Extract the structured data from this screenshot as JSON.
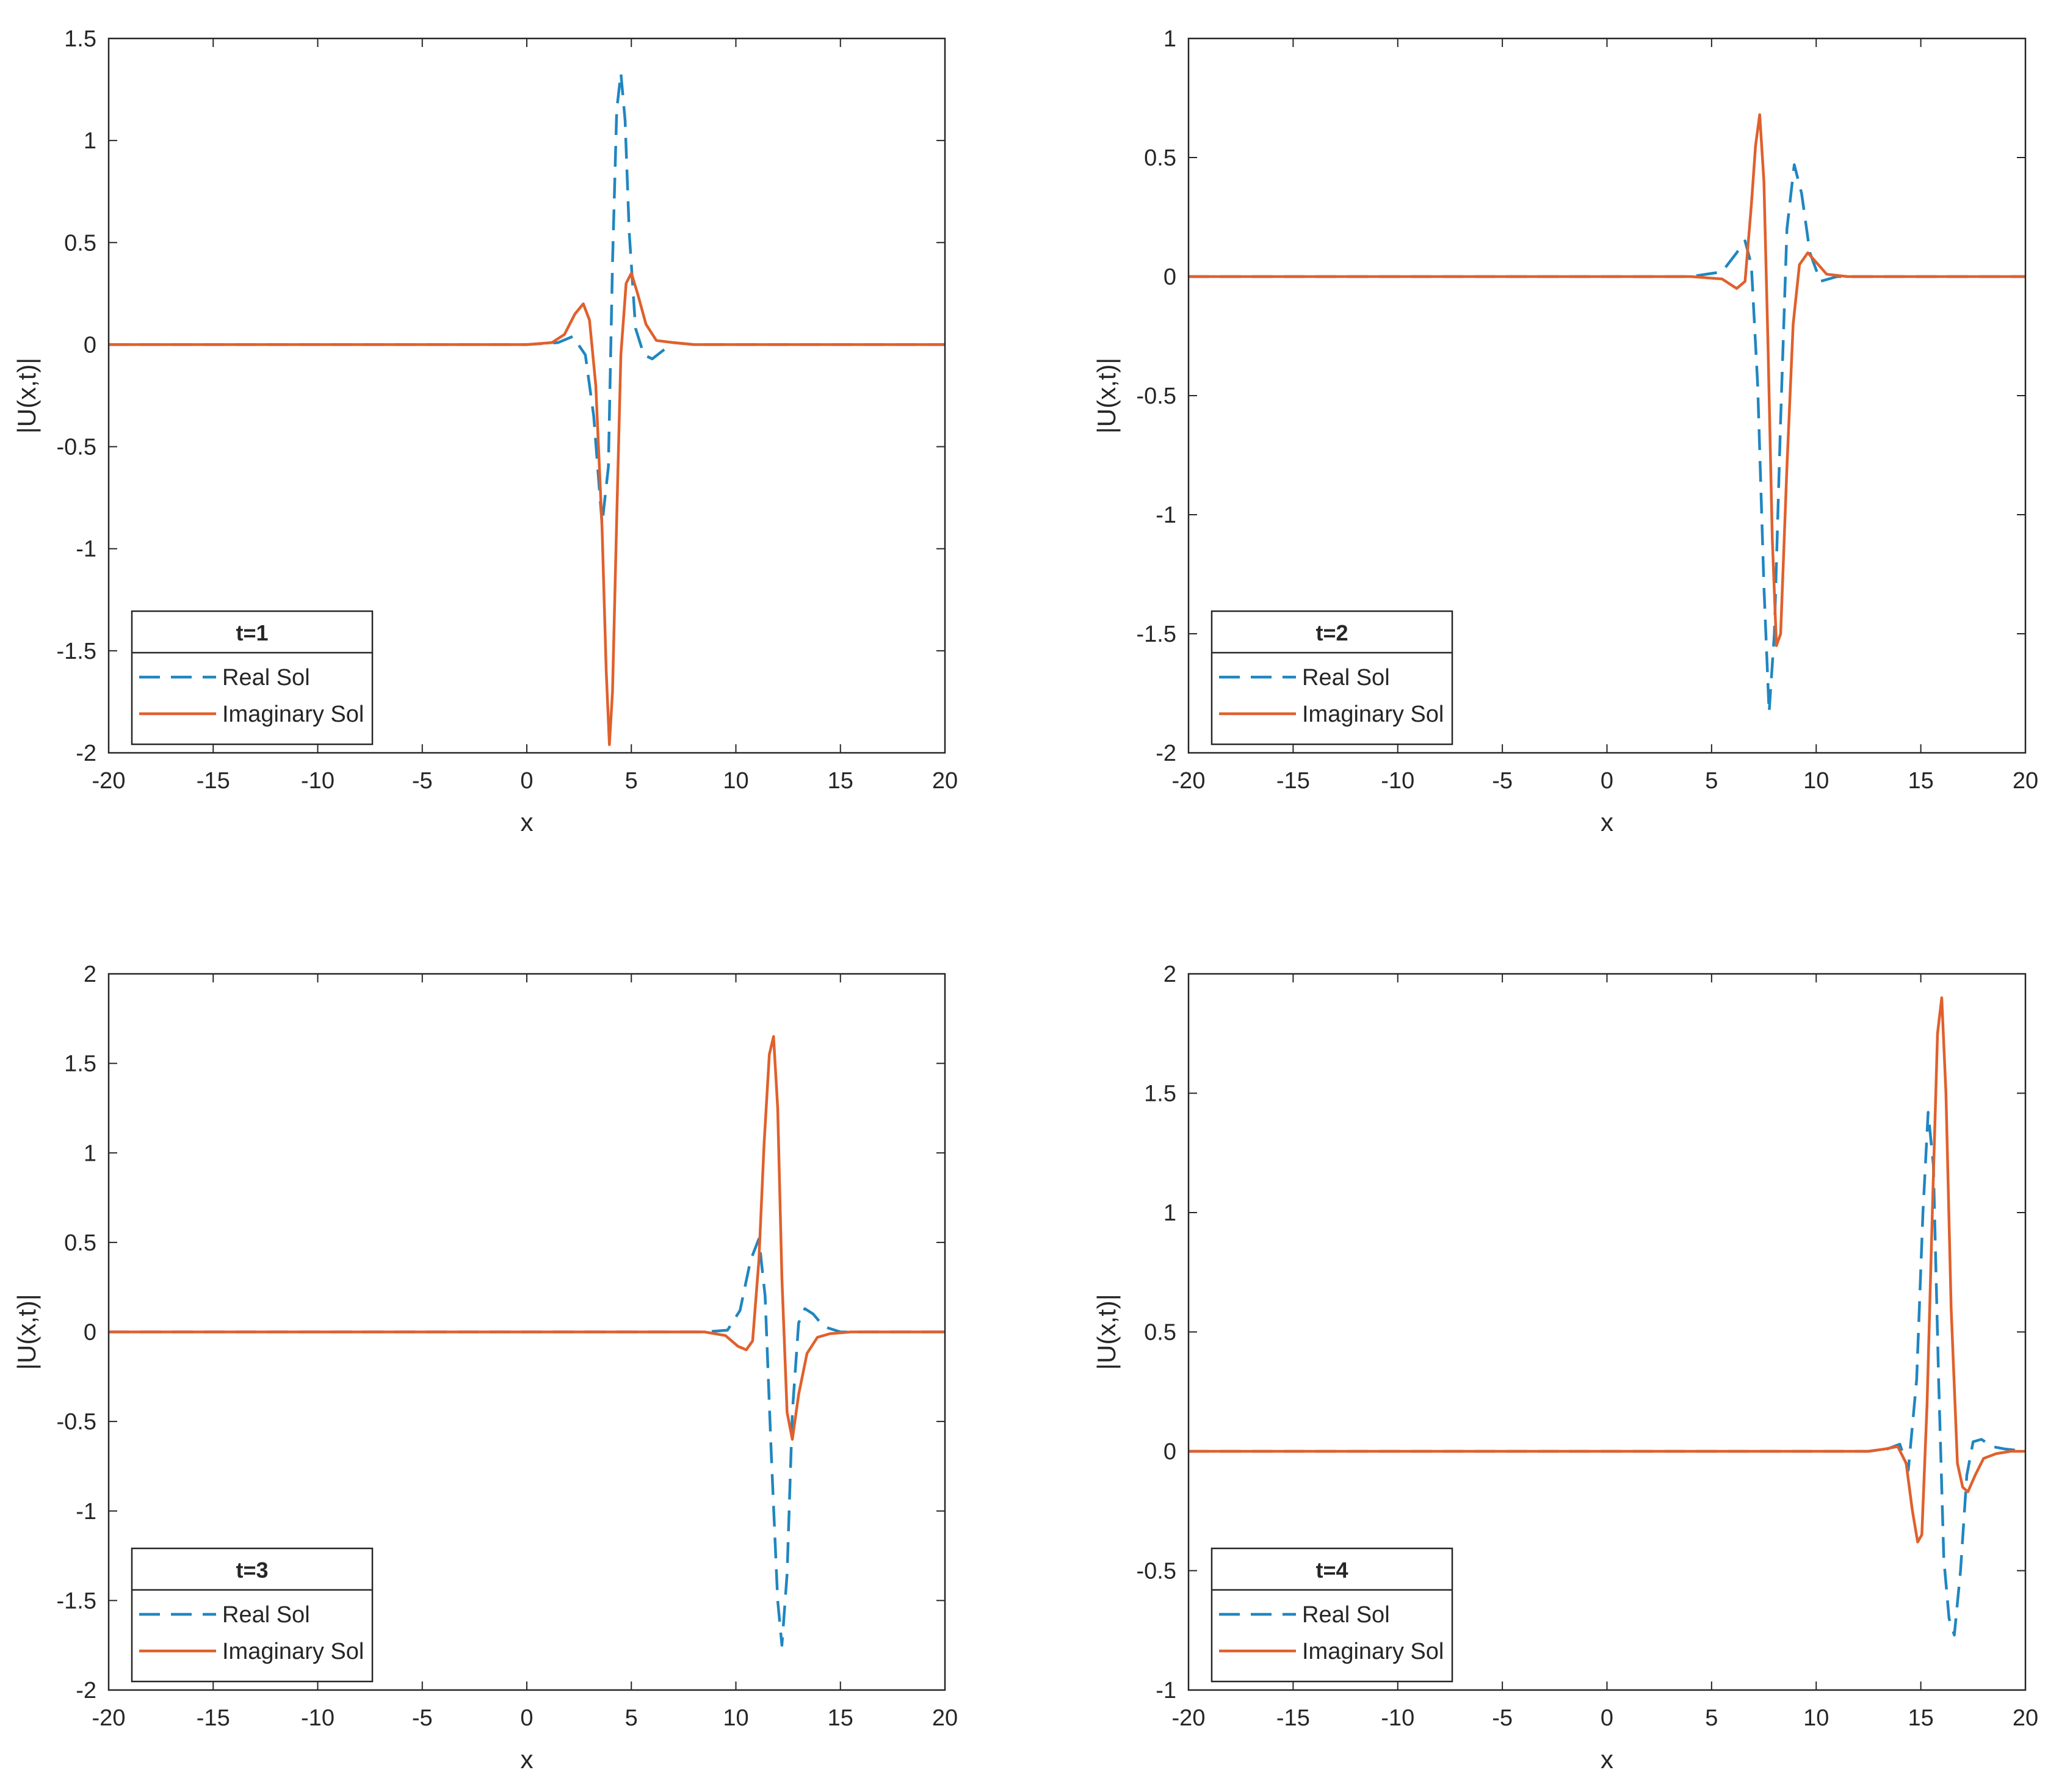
{
  "figure": {
    "colors": {
      "real": "#1f86c1",
      "imaginary": "#e0602c",
      "axis": "#262626",
      "background": "#ffffff"
    }
  },
  "chart_data": [
    {
      "type": "line",
      "legend_title": "t=1",
      "xlabel": "x",
      "ylabel": "|U(x,t)|",
      "xlim": [
        -20,
        20
      ],
      "ylim": [
        -2,
        1.5
      ],
      "xticks": [
        -20,
        -15,
        -10,
        -5,
        0,
        5,
        10,
        15,
        20
      ],
      "xtick_labels": [
        "-20",
        "-15",
        "-10",
        "-5",
        "0",
        "5",
        "10",
        "15",
        "20"
      ],
      "yticks": [
        -2,
        -1.5,
        -1,
        -0.5,
        0,
        0.5,
        1,
        1.5
      ],
      "ytick_labels": [
        "-2",
        "-1.5",
        "-1",
        "-0.5",
        "0",
        "0.5",
        "1",
        "1.5"
      ],
      "legend_location": "bottom-left",
      "series": [
        {
          "name": "Real Sol",
          "style": "dashed",
          "color": "#1f86c1",
          "x": [
            -20,
            0,
            1.5,
            2.2,
            2.8,
            3.2,
            3.6,
            3.9,
            4.1,
            4.3,
            4.5,
            4.7,
            4.9,
            5.2,
            5.6,
            6.0,
            6.5,
            7.0,
            8.0,
            20
          ],
          "y": [
            0,
            0,
            0.01,
            0.04,
            -0.05,
            -0.35,
            -0.88,
            -0.6,
            0.4,
            1.15,
            1.33,
            1.1,
            0.55,
            0.08,
            -0.05,
            -0.07,
            -0.03,
            0.01,
            0,
            0
          ]
        },
        {
          "name": "Imaginary Sol",
          "style": "solid",
          "color": "#e0602c",
          "x": [
            -20,
            0,
            1.2,
            1.8,
            2.3,
            2.7,
            3.0,
            3.3,
            3.6,
            3.8,
            3.95,
            4.1,
            4.3,
            4.5,
            4.75,
            5.0,
            5.3,
            5.7,
            6.2,
            7.0,
            8.0,
            20
          ],
          "y": [
            0,
            0,
            0.01,
            0.05,
            0.15,
            0.2,
            0.12,
            -0.2,
            -0.9,
            -1.6,
            -1.96,
            -1.7,
            -0.85,
            -0.05,
            0.3,
            0.35,
            0.25,
            0.1,
            0.02,
            0.01,
            0,
            0
          ]
        }
      ]
    },
    {
      "type": "line",
      "legend_title": "t=2",
      "xlabel": "x",
      "ylabel": "|U(x,t)|",
      "xlim": [
        -20,
        20
      ],
      "ylim": [
        -2,
        1
      ],
      "xticks": [
        -20,
        -15,
        -10,
        -5,
        0,
        5,
        10,
        15,
        20
      ],
      "xtick_labels": [
        "-20",
        "-15",
        "-10",
        "-5",
        "0",
        "5",
        "10",
        "15",
        "20"
      ],
      "yticks": [
        -2,
        -1.5,
        -1,
        -0.5,
        0,
        0.5,
        1
      ],
      "ytick_labels": [
        "-2",
        "-1.5",
        "-1",
        "-0.5",
        "0",
        "0.5",
        "1"
      ],
      "legend_location": "bottom-left",
      "series": [
        {
          "name": "Real Sol",
          "style": "dashed",
          "color": "#1f86c1",
          "x": [
            -20,
            4,
            5.5,
            6.2,
            6.6,
            6.9,
            7.2,
            7.5,
            7.75,
            8.0,
            8.3,
            8.6,
            8.95,
            9.3,
            9.7,
            10.2,
            11.0,
            12.0,
            20
          ],
          "y": [
            0,
            0,
            0.02,
            0.1,
            0.15,
            0.05,
            -0.45,
            -1.3,
            -1.83,
            -1.5,
            -0.6,
            0.2,
            0.47,
            0.35,
            0.1,
            -0.02,
            0,
            0,
            0
          ]
        },
        {
          "name": "Imaginary Sol",
          "style": "solid",
          "color": "#e0602c",
          "x": [
            -20,
            4,
            5.5,
            6.2,
            6.6,
            6.9,
            7.1,
            7.3,
            7.5,
            7.7,
            7.9,
            8.1,
            8.3,
            8.6,
            8.9,
            9.2,
            9.6,
            10.0,
            10.5,
            11.5,
            20
          ],
          "y": [
            0,
            0,
            -0.01,
            -0.05,
            -0.02,
            0.3,
            0.55,
            0.68,
            0.4,
            -0.3,
            -1.1,
            -1.55,
            -1.5,
            -0.8,
            -0.2,
            0.05,
            0.1,
            0.06,
            0.01,
            0,
            0
          ]
        }
      ]
    },
    {
      "type": "line",
      "legend_title": "t=3",
      "xlabel": "x",
      "ylabel": "|U(x,t)|",
      "xlim": [
        -20,
        20
      ],
      "ylim": [
        -2,
        2
      ],
      "xticks": [
        -20,
        -15,
        -10,
        -5,
        0,
        5,
        10,
        15,
        20
      ],
      "xtick_labels": [
        "-20",
        "-15",
        "-10",
        "-5",
        "0",
        "5",
        "10",
        "15",
        "20"
      ],
      "yticks": [
        -2,
        -1.5,
        -1,
        -0.5,
        0,
        0.5,
        1,
        1.5,
        2
      ],
      "ytick_labels": [
        "-2",
        "-1.5",
        "-1",
        "-0.5",
        "0",
        "0.5",
        "1",
        "1.5",
        "2"
      ],
      "legend_location": "bottom-left",
      "series": [
        {
          "name": "Real Sol",
          "style": "dashed",
          "color": "#1f86c1",
          "x": [
            -20,
            8.5,
            9.6,
            10.2,
            10.7,
            11.1,
            11.4,
            11.7,
            12.0,
            12.2,
            12.45,
            12.7,
            13.0,
            13.3,
            13.7,
            14.2,
            15.0,
            16.0,
            20
          ],
          "y": [
            0,
            0,
            0.01,
            0.12,
            0.4,
            0.52,
            0.2,
            -0.7,
            -1.5,
            -1.75,
            -1.35,
            -0.45,
            0.05,
            0.13,
            0.1,
            0.03,
            0,
            0,
            0
          ]
        },
        {
          "name": "Imaginary Sol",
          "style": "solid",
          "color": "#e0602c",
          "x": [
            -20,
            8.5,
            9.5,
            10.1,
            10.5,
            10.8,
            11.1,
            11.35,
            11.6,
            11.8,
            12.0,
            12.2,
            12.45,
            12.7,
            13.0,
            13.4,
            13.9,
            14.5,
            15.5,
            20
          ],
          "y": [
            0,
            0,
            -0.02,
            -0.08,
            -0.1,
            -0.05,
            0.4,
            1.05,
            1.55,
            1.65,
            1.25,
            0.3,
            -0.45,
            -0.6,
            -0.35,
            -0.12,
            -0.03,
            -0.01,
            0,
            0
          ]
        }
      ]
    },
    {
      "type": "line",
      "legend_title": "t=4",
      "xlabel": "x",
      "ylabel": "|U(x,t)|",
      "xlim": [
        -20,
        20
      ],
      "ylim": [
        -1,
        2
      ],
      "xticks": [
        -20,
        -15,
        -10,
        -5,
        0,
        5,
        10,
        15,
        20
      ],
      "xtick_labels": [
        "-20",
        "-15",
        "-10",
        "-5",
        "0",
        "5",
        "10",
        "15",
        "20"
      ],
      "yticks": [
        -1,
        -0.5,
        0,
        0.5,
        1,
        1.5,
        2
      ],
      "ytick_labels": [
        "-1",
        "-0.5",
        "0",
        "0.5",
        "1",
        "1.5",
        "2"
      ],
      "legend_location": "bottom-left",
      "series": [
        {
          "name": "Real Sol",
          "style": "dashed",
          "color": "#1f86c1",
          "x": [
            -20,
            12.5,
            13.4,
            14.0,
            14.4,
            14.8,
            15.1,
            15.35,
            15.6,
            15.85,
            16.1,
            16.35,
            16.6,
            16.9,
            17.2,
            17.5,
            17.9,
            18.4,
            19.0,
            20
          ],
          "y": [
            0,
            0,
            0.01,
            0.03,
            -0.08,
            0.3,
            1.0,
            1.42,
            1.2,
            0.3,
            -0.45,
            -0.7,
            -0.77,
            -0.5,
            -0.1,
            0.04,
            0.05,
            0.02,
            0.01,
            0
          ]
        },
        {
          "name": "Imaginary Sol",
          "style": "solid",
          "color": "#e0602c",
          "x": [
            -20,
            12.5,
            13.3,
            13.9,
            14.3,
            14.6,
            14.85,
            15.05,
            15.3,
            15.55,
            15.8,
            16.0,
            16.2,
            16.45,
            16.75,
            17.0,
            17.25,
            17.6,
            18.0,
            18.6,
            19.3,
            20
          ],
          "y": [
            0,
            0,
            0.01,
            0.02,
            -0.05,
            -0.25,
            -0.38,
            -0.35,
            0.2,
            1.0,
            1.75,
            1.9,
            1.5,
            0.6,
            -0.05,
            -0.15,
            -0.17,
            -0.1,
            -0.03,
            -0.01,
            0,
            0
          ]
        }
      ]
    }
  ]
}
